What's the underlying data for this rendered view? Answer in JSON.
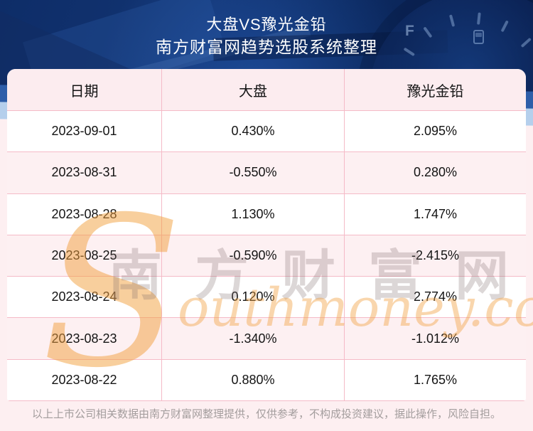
{
  "banner": {
    "title": "大盘VS豫光金铅",
    "subtitle": "南方财富网趋势选股系统整理",
    "gauge_label": "F"
  },
  "chart_data": {
    "type": "table",
    "title": "大盘VS豫光金铅",
    "subtitle": "南方财富网趋势选股系统整理",
    "columns": [
      "日期",
      "大盘",
      "豫光金铅"
    ],
    "rows": [
      [
        "2023-09-01",
        "0.430%",
        "2.095%"
      ],
      [
        "2023-08-31",
        "-0.550%",
        "0.280%"
      ],
      [
        "2023-08-28",
        "1.130%",
        "1.747%"
      ],
      [
        "2023-08-25",
        "-0.590%",
        "-2.415%"
      ],
      [
        "2023-08-24",
        "0.120%",
        "2.774%"
      ],
      [
        "2023-08-23",
        "-1.340%",
        "-1.012%"
      ],
      [
        "2023-08-22",
        "0.880%",
        "1.765%"
      ]
    ]
  },
  "watermark": {
    "cn_text": "南方财富网",
    "en_initial": "S",
    "en_rest": "outhmoney.com"
  },
  "footer": {
    "disclaimer": "以上上市公司相关数据由南方财富网整理提供，仅供参考，不构成投资建议，据此操作，风险自担。"
  },
  "colors": {
    "banner-base": "#0e2d68",
    "banner-deep": "#081c49",
    "banner-bright": "#1c4690",
    "band-mid": "#2e5ea9",
    "band-light": "#b5cfec",
    "page-pink": "#fdeff1",
    "header-pink": "#fcecef",
    "row-pink": "#fdf0f2",
    "row-white": "#ffffff",
    "border-pink": "#f5bac7",
    "text-dark": "#141414",
    "footer-gray": "#a39d9d",
    "watermark-orange": "#f2a03e",
    "watermark-gray": "#7d6969",
    "title-white": "#ffffff"
  }
}
